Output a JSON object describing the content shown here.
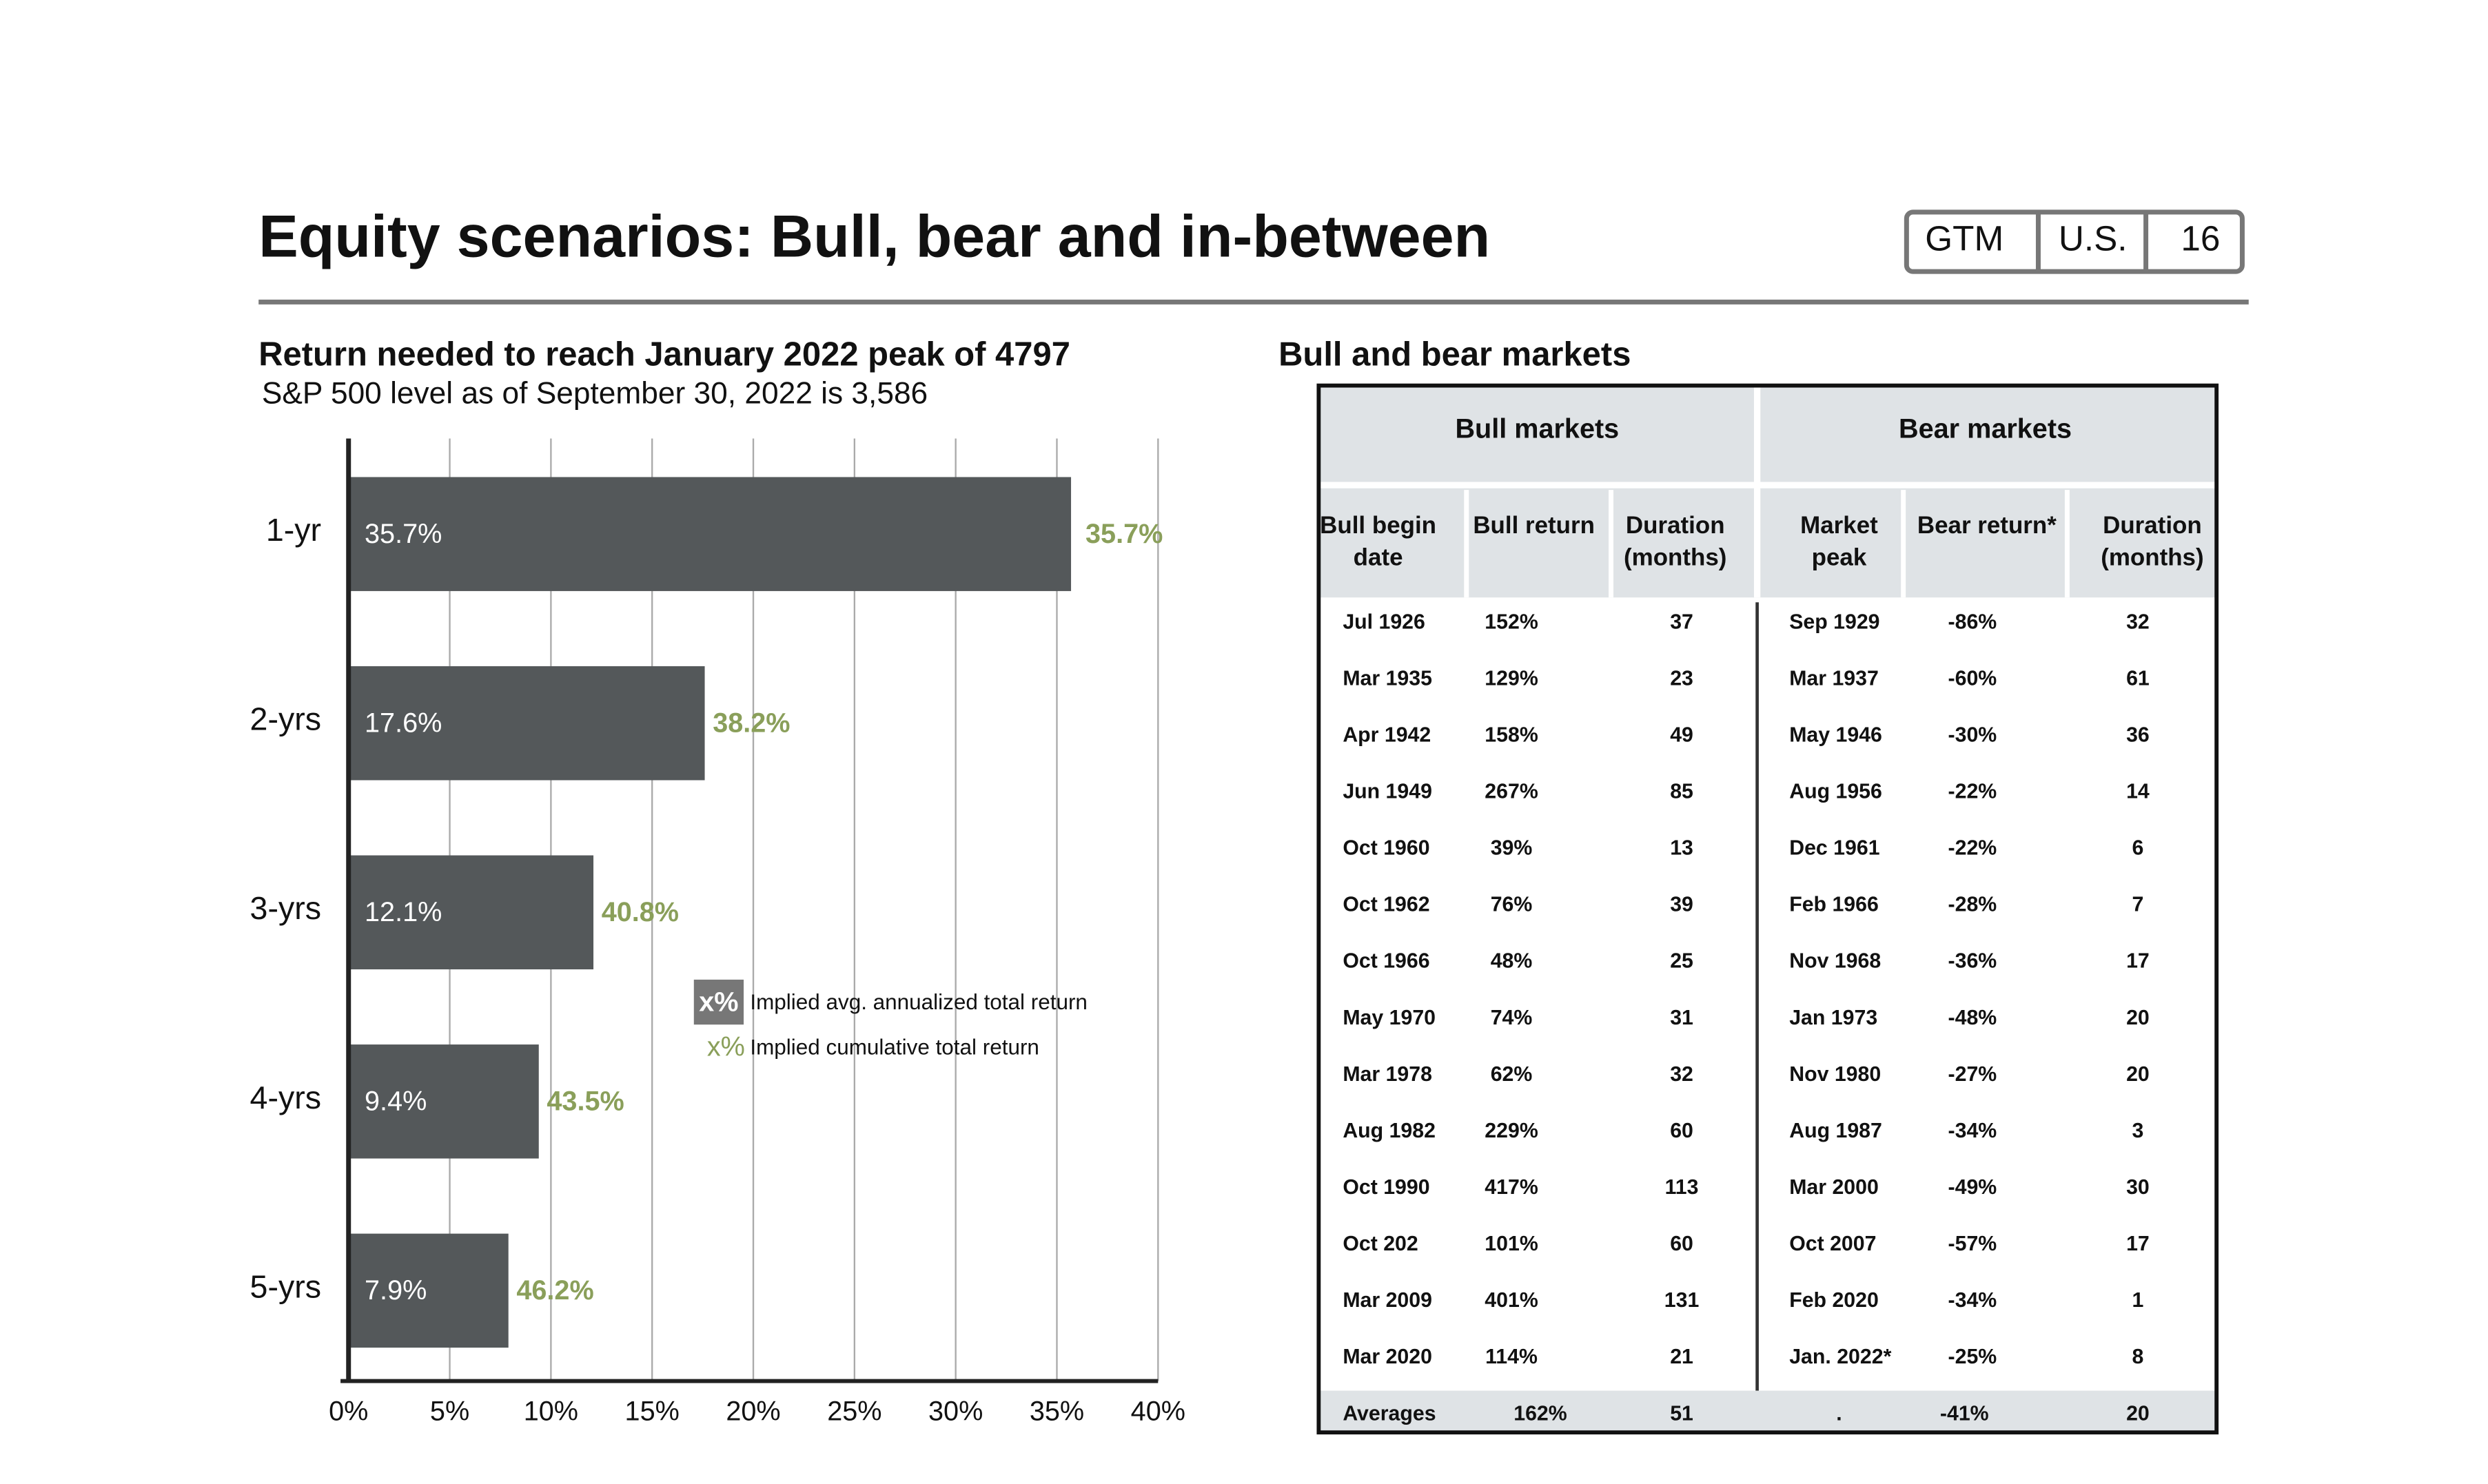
{
  "header": {
    "title": "Equity scenarios: Bull, bear and in-between",
    "tags": [
      "GTM",
      "U.S.",
      "16"
    ]
  },
  "chart_data": {
    "type": "bar",
    "orientation": "horizontal",
    "title": "Return needed to reach January 2022 peak of 4797",
    "subtitle": "S&P 500 level as of September 30, 2022 is 3,586",
    "categories": [
      "1-yr",
      "2-yrs",
      "3-yrs",
      "4-yrs",
      "5-yrs"
    ],
    "series": [
      {
        "name": "Implied avg. annualized total return",
        "color": "#54585a",
        "values": [
          35.7,
          17.6,
          12.1,
          9.4,
          7.9
        ],
        "value_labels": [
          "35.7%",
          "17.6%",
          "12.1%",
          "9.4%",
          "7.9%"
        ]
      },
      {
        "name": "Implied cumulative total return",
        "color": "#8a9f5a",
        "values": [
          35.7,
          38.2,
          40.8,
          43.5,
          46.2
        ],
        "value_labels": [
          "35.7%",
          "38.2%",
          "40.8%",
          "43.5%",
          "46.2%"
        ]
      }
    ],
    "legend_symbol": "x%",
    "xlim": [
      0,
      40
    ],
    "xticks": [
      {
        "value": 0,
        "label": "0%"
      },
      {
        "value": 5,
        "label": "5%"
      },
      {
        "value": 10,
        "label": "10%"
      },
      {
        "value": 15,
        "label": "15%"
      },
      {
        "value": 20,
        "label": "20%"
      },
      {
        "value": 25,
        "label": "25%"
      },
      {
        "value": 30,
        "label": "30%"
      },
      {
        "value": 35,
        "label": "35%"
      },
      {
        "value": 40,
        "label": "40%"
      }
    ],
    "grid": true
  },
  "table": {
    "title": "Bull and bear markets",
    "groups": [
      "Bull markets",
      "Bear markets"
    ],
    "columns": [
      [
        "Bull begin",
        "date"
      ],
      [
        "Bull return"
      ],
      [
        "Duration",
        "(months)"
      ],
      [
        "Market",
        "peak"
      ],
      [
        "Bear return*"
      ],
      [
        "Duration",
        "(months)"
      ]
    ],
    "rows": [
      [
        "Jul 1926",
        "152%",
        "37",
        "Sep 1929",
        "-86%",
        "32"
      ],
      [
        "Mar 1935",
        "129%",
        "23",
        "Mar 1937",
        "-60%",
        "61"
      ],
      [
        "Apr 1942",
        "158%",
        "49",
        "May 1946",
        "-30%",
        "36"
      ],
      [
        "Jun 1949",
        "267%",
        "85",
        "Aug 1956",
        "-22%",
        "14"
      ],
      [
        "Oct 1960",
        "39%",
        "13",
        "Dec 1961",
        "-22%",
        "6"
      ],
      [
        "Oct 1962",
        "76%",
        "39",
        "Feb 1966",
        "-28%",
        "7"
      ],
      [
        "Oct 1966",
        "48%",
        "25",
        "Nov 1968",
        "-36%",
        "17"
      ],
      [
        "May 1970",
        "74%",
        "31",
        "Jan 1973",
        "-48%",
        "20"
      ],
      [
        "Mar 1978",
        "62%",
        "32",
        "Nov 1980",
        "-27%",
        "20"
      ],
      [
        "Aug 1982",
        "229%",
        "60",
        "Aug 1987",
        "-34%",
        "3"
      ],
      [
        "Oct 1990",
        "417%",
        "113",
        "Mar 2000",
        "-49%",
        "30"
      ],
      [
        "Oct 202",
        "101%",
        "60",
        "Oct 2007",
        "-57%",
        "17"
      ],
      [
        "Mar 2009",
        "401%",
        "131",
        "Feb 2020",
        "-34%",
        "1"
      ],
      [
        "Mar 2020",
        "114%",
        "21",
        "Jan. 2022*",
        "-25%",
        "8"
      ]
    ],
    "averages": [
      "Averages",
      "162%",
      "51",
      ".",
      "-41%",
      "20"
    ]
  }
}
